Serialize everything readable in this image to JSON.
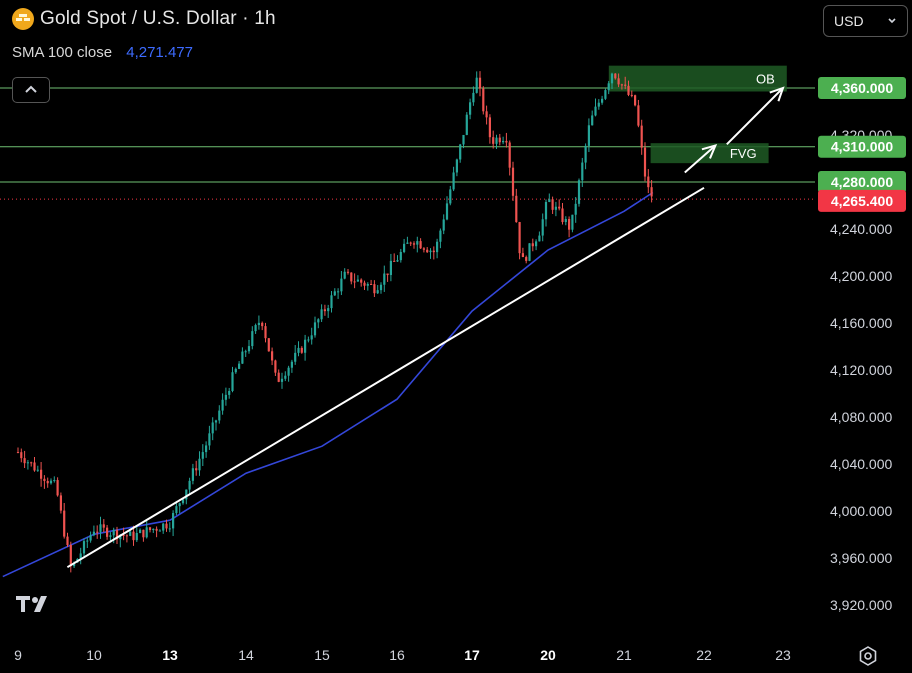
{
  "header": {
    "title": "Gold Spot / U.S. Dollar · 1h",
    "indicator_label": "SMA 100 close",
    "indicator_value": "4,271.477",
    "currency": "USD"
  },
  "colors": {
    "bull": "#26a69a",
    "bear": "#ef5350",
    "sma": "#3447d9",
    "level_line": "#6fbf73",
    "level_label": "#4caf50",
    "price_label": "#f23645",
    "zone": "#1e5b24",
    "trend": "#ffffff"
  },
  "chart_data": {
    "type": "candlestick",
    "title": "Gold Spot / U.S. Dollar · 1h",
    "x_tick_labels": [
      "9",
      "10",
      "13",
      "14",
      "15",
      "16",
      "17",
      "20",
      "21",
      "22",
      "23"
    ],
    "y_tick_labels": [
      "3,920.000",
      "3,960.000",
      "4,000.000",
      "4,040.000",
      "4,080.000",
      "4,120.000",
      "4,160.000",
      "4,200.000",
      "4,240.000",
      "4,320.000"
    ],
    "y_ticks": [
      3920,
      3960,
      4000,
      4040,
      4080,
      4120,
      4160,
      4200,
      4240,
      4320
    ],
    "ylim": [
      3905,
      4390
    ],
    "price_levels": [
      {
        "label": "4,360.000",
        "value": 4360
      },
      {
        "label": "4,310.000",
        "value": 4310
      },
      {
        "label": "4,280.000",
        "value": 4280
      }
    ],
    "current_price": {
      "label": "4,265.400",
      "value": 4265.4
    },
    "zones": [
      {
        "label": "OB",
        "from_date": "20",
        "from_frac": 0.8,
        "to_date": "23",
        "to_frac": 0.05,
        "low": 4357,
        "high": 4379
      },
      {
        "label": "FVG",
        "from_date": "21",
        "from_frac": 0.35,
        "to_date": "22",
        "to_frac": 0.85,
        "low": 4296,
        "high": 4313
      }
    ],
    "trendline": {
      "start": {
        "date": "9",
        "frac": 0.65,
        "price": 3952
      },
      "end": {
        "date": "22",
        "frac": 0.0,
        "price": 4275
      }
    },
    "arrows": [
      {
        "from": {
          "date": "21",
          "frac": 0.8,
          "price": 4288
        },
        "to": {
          "date": "22",
          "frac": 0.15,
          "price": 4311
        }
      },
      {
        "from": {
          "date": "22",
          "frac": 0.3,
          "price": 4312
        },
        "to": {
          "date": "23",
          "frac": 0.0,
          "price": 4360
        }
      }
    ],
    "anchors": [
      {
        "date": "9",
        "frac": 0.0,
        "price": 4050
      },
      {
        "date": "9",
        "frac": 0.5,
        "price": 4020
      },
      {
        "date": "9",
        "frac": 0.7,
        "price": 3950
      },
      {
        "date": "10",
        "frac": 0.0,
        "price": 3985
      },
      {
        "date": "10",
        "frac": 0.5,
        "price": 3978
      },
      {
        "date": "13",
        "frac": 0.0,
        "price": 3990
      },
      {
        "date": "13",
        "frac": 0.5,
        "price": 4060
      },
      {
        "date": "13",
        "frac": 0.8,
        "price": 4110
      },
      {
        "date": "14",
        "frac": 0.2,
        "price": 4165
      },
      {
        "date": "14",
        "frac": 0.4,
        "price": 4110
      },
      {
        "date": "14",
        "frac": 0.7,
        "price": 4135
      },
      {
        "date": "15",
        "frac": 0.3,
        "price": 4200
      },
      {
        "date": "15",
        "frac": 0.7,
        "price": 4190
      },
      {
        "date": "16",
        "frac": 0.2,
        "price": 4232
      },
      {
        "date": "16",
        "frac": 0.5,
        "price": 4220
      },
      {
        "date": "16",
        "frac": 0.8,
        "price": 4300
      },
      {
        "date": "17",
        "frac": 0.05,
        "price": 4370
      },
      {
        "date": "17",
        "frac": 0.25,
        "price": 4315
      },
      {
        "date": "17",
        "frac": 0.45,
        "price": 4320
      },
      {
        "date": "17",
        "frac": 0.65,
        "price": 4210
      },
      {
        "date": "17",
        "frac": 0.9,
        "price": 4240
      },
      {
        "date": "20",
        "frac": 0.0,
        "price": 4265
      },
      {
        "date": "20",
        "frac": 0.3,
        "price": 4240
      },
      {
        "date": "20",
        "frac": 0.55,
        "price": 4330
      },
      {
        "date": "20",
        "frac": 0.85,
        "price": 4375
      },
      {
        "date": "21",
        "frac": 0.15,
        "price": 4345
      },
      {
        "date": "21",
        "frac": 0.3,
        "price": 4275
      },
      {
        "date": "21",
        "frac": 0.4,
        "price": 4265
      }
    ],
    "sma_anchors": [
      {
        "date": "9",
        "frac": -0.2,
        "price": 3944
      },
      {
        "date": "10",
        "frac": 0.0,
        "price": 3980
      },
      {
        "date": "13",
        "frac": 0.0,
        "price": 3992
      },
      {
        "date": "14",
        "frac": 0.0,
        "price": 4032
      },
      {
        "date": "15",
        "frac": 0.0,
        "price": 4055
      },
      {
        "date": "16",
        "frac": 0.0,
        "price": 4095
      },
      {
        "date": "17",
        "frac": 0.0,
        "price": 4170
      },
      {
        "date": "20",
        "frac": 0.0,
        "price": 4222
      },
      {
        "date": "21",
        "frac": 0.0,
        "price": 4255
      },
      {
        "date": "21",
        "frac": 0.38,
        "price": 4271
      }
    ]
  }
}
